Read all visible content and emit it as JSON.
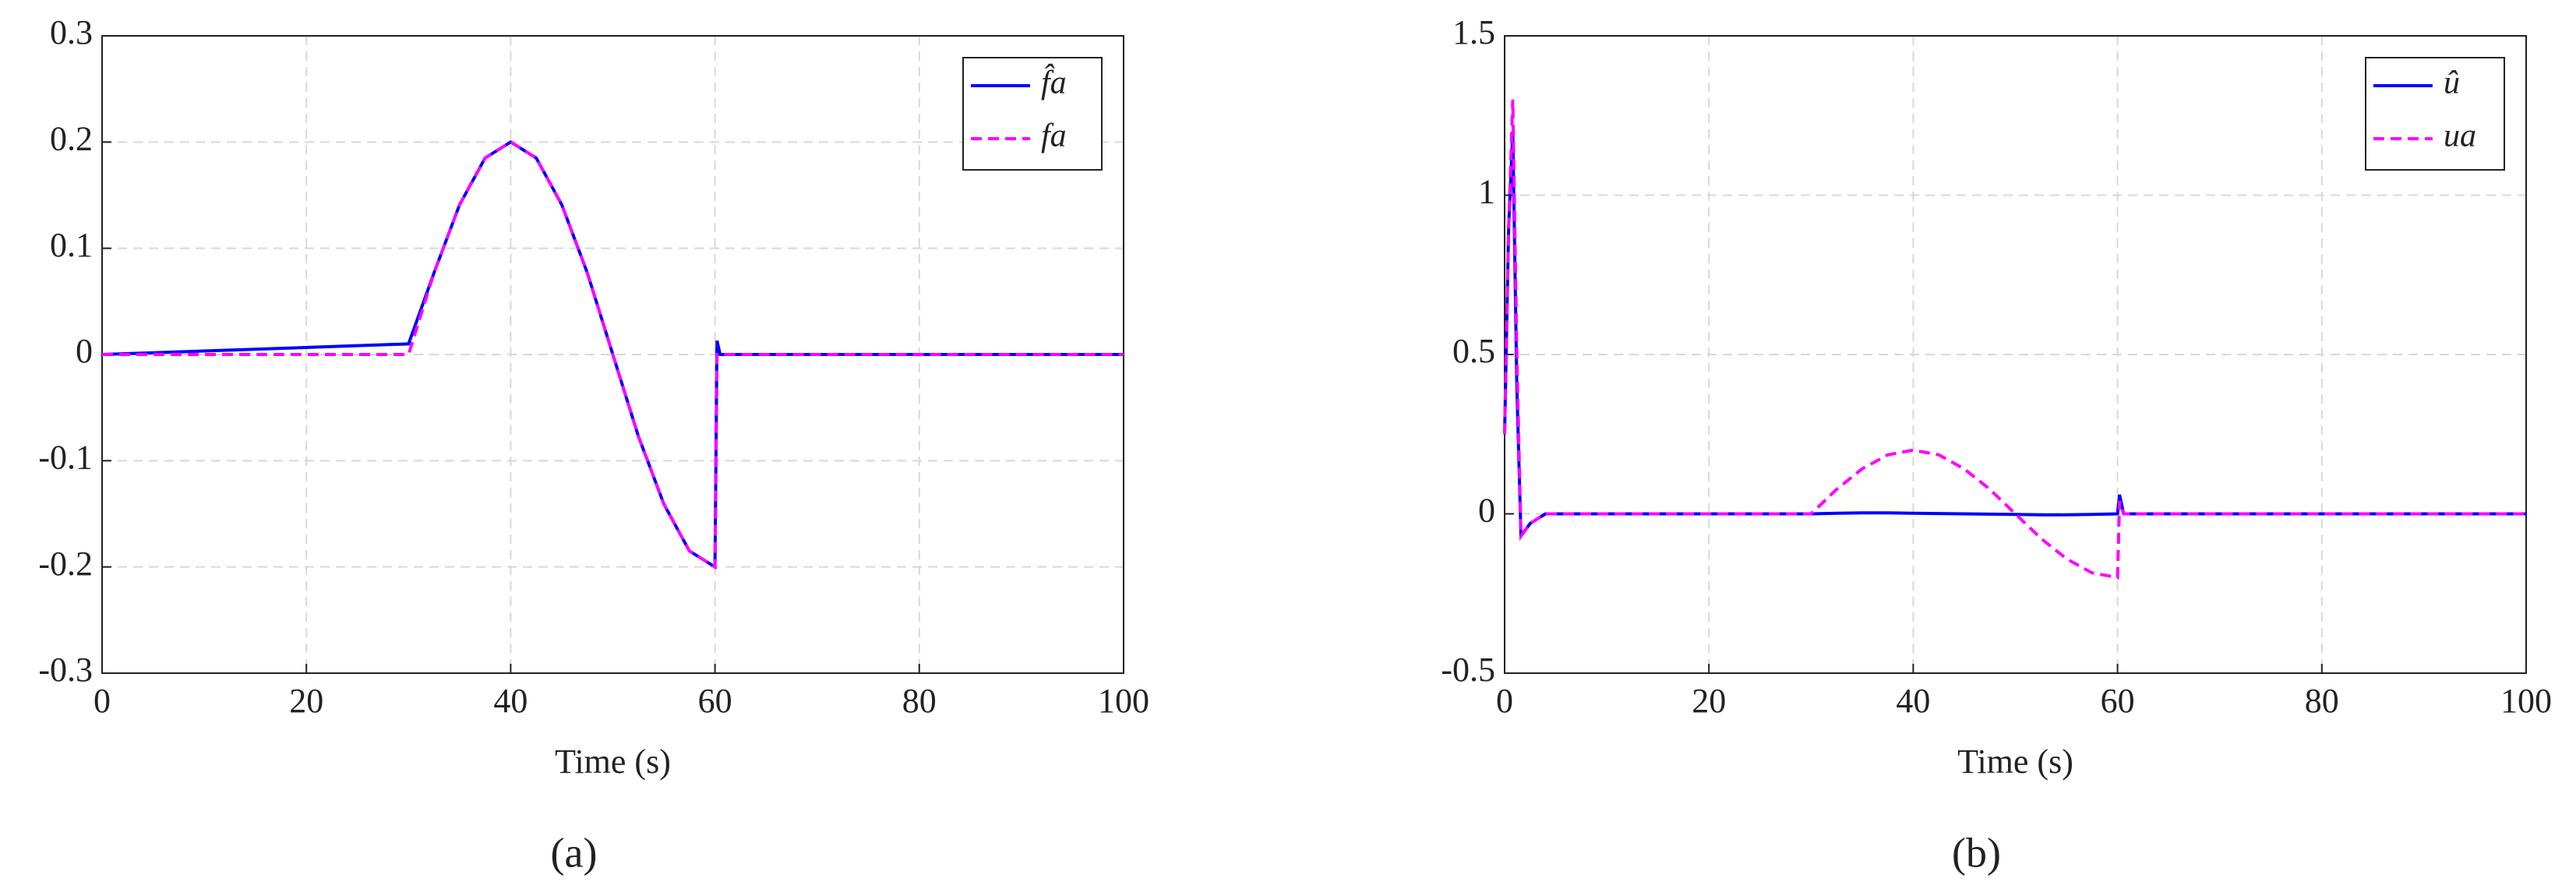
{
  "chart_data": [
    {
      "type": "line",
      "caption": "(a)",
      "xlabel": "Time (s)",
      "x": [
        0,
        30,
        32.5,
        35,
        37.5,
        40,
        42.5,
        45,
        47.5,
        50,
        52.5,
        55,
        57.5,
        60,
        60.2,
        60.5,
        100
      ],
      "series": [
        {
          "name": "f̂a",
          "color": "#0000ff",
          "style": "solid",
          "values": [
            0,
            0.01,
            0.077,
            0.141,
            0.185,
            0.2,
            0.185,
            0.141,
            0.077,
            0,
            -0.077,
            -0.141,
            -0.185,
            -0.2,
            0.013,
            0,
            0
          ]
        },
        {
          "name": "fa",
          "color": "#ff00ff",
          "style": "dashed",
          "values": [
            0,
            0,
            0.077,
            0.141,
            0.185,
            0.2,
            0.185,
            0.141,
            0.077,
            0,
            -0.077,
            -0.141,
            -0.185,
            -0.2,
            0,
            0,
            0
          ]
        }
      ],
      "xlim": [
        0,
        100
      ],
      "xticks": [
        0,
        20,
        40,
        60,
        80,
        100
      ],
      "ylim": [
        -0.3,
        0.3
      ],
      "yticks": [
        -0.3,
        -0.2,
        -0.1,
        0,
        0.1,
        0.2,
        0.3
      ],
      "grid": true,
      "legend": "top-right"
    },
    {
      "type": "line",
      "caption": "(b)",
      "xlabel": "Time (s)",
      "x": [
        0,
        0.4,
        0.8,
        1.2,
        1.6,
        2.5,
        4,
        30,
        32.5,
        35,
        37.5,
        40,
        42.5,
        45,
        47.5,
        50,
        52.5,
        55,
        57.5,
        60,
        60.2,
        60.6,
        100
      ],
      "series": [
        {
          "name": "û",
          "color": "#0000ff",
          "style": "solid",
          "values": [
            0.25,
            0.9,
            1.2,
            0.4,
            -0.07,
            -0.03,
            0,
            0,
            0.002,
            0.003,
            0.003,
            0.002,
            0.001,
            0,
            -0.001,
            -0.002,
            -0.003,
            -0.003,
            -0.002,
            0,
            0.06,
            0,
            0
          ]
        },
        {
          "name": "ua",
          "color": "#ff00ff",
          "style": "dashed",
          "values": [
            0.25,
            0.9,
            1.3,
            0.5,
            -0.07,
            -0.03,
            0,
            0,
            0.077,
            0.141,
            0.185,
            0.2,
            0.185,
            0.141,
            0.077,
            0,
            -0.077,
            -0.141,
            -0.185,
            -0.2,
            0.04,
            0,
            0
          ]
        }
      ],
      "xlim": [
        0,
        100
      ],
      "xticks": [
        0,
        20,
        40,
        60,
        80,
        100
      ],
      "ylim": [
        -0.5,
        1.5
      ],
      "yticks": [
        -0.5,
        0,
        0.5,
        1,
        1.5
      ],
      "grid": true,
      "legend": "top-right"
    }
  ]
}
